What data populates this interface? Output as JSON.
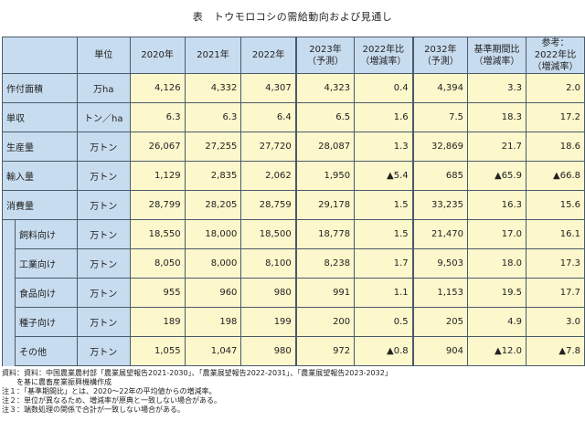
{
  "title": "表　トウモロコシの需給動向および見通し",
  "headers": {
    "unit": "単位",
    "y2020": "2020年",
    "y2021": "2021年",
    "y2022": "2022年",
    "y2023a": "2023年",
    "y2023b": "（予測）",
    "cmp2022a": "2022年比",
    "cmp2022b": "（増減率）",
    "y2032a": "2032年",
    "y2032b": "（予測）",
    "baseA": "基準期間比",
    "baseB": "（増減率）",
    "refA": "参考：",
    "refB": "2022年比",
    "refC": "（増減率）"
  },
  "rows": [
    {
      "label": "作付面積",
      "unit": "万ha",
      "v": [
        "4,126",
        "4,332",
        "4,307",
        "4,323",
        "0.4",
        "4,394",
        "3.3",
        "2.0"
      ]
    },
    {
      "label": "単収",
      "unit": "トン／ha",
      "v": [
        "6.3",
        "6.3",
        "6.4",
        "6.5",
        "1.6",
        "7.5",
        "18.3",
        "17.2"
      ]
    },
    {
      "label": "生産量",
      "unit": "万トン",
      "v": [
        "26,067",
        "27,255",
        "27,720",
        "28,087",
        "1.3",
        "32,869",
        "21.7",
        "18.6"
      ]
    },
    {
      "label": "輸入量",
      "unit": "万トン",
      "v": [
        "1,129",
        "2,835",
        "2,062",
        "1,950",
        "▲5.4",
        "685",
        "▲65.9",
        "▲66.8"
      ]
    },
    {
      "label": "消費量",
      "unit": "万トン",
      "v": [
        "28,799",
        "28,205",
        "28,759",
        "29,178",
        "1.5",
        "33,235",
        "16.3",
        "15.6"
      ]
    },
    {
      "label": "飼料向け",
      "unit": "万トン",
      "v": [
        "18,550",
        "18,000",
        "18,500",
        "18,778",
        "1.5",
        "21,470",
        "17.0",
        "16.1"
      ]
    },
    {
      "label": "工業向け",
      "unit": "万トン",
      "v": [
        "8,050",
        "8,000",
        "8,100",
        "8,238",
        "1.7",
        "9,503",
        "18.0",
        "17.3"
      ]
    },
    {
      "label": "食品向け",
      "unit": "万トン",
      "v": [
        "955",
        "960",
        "980",
        "991",
        "1.1",
        "1,153",
        "19.5",
        "17.7"
      ]
    },
    {
      "label": "種子向け",
      "unit": "万トン",
      "v": [
        "189",
        "198",
        "199",
        "200",
        "0.5",
        "205",
        "4.9",
        "3.0"
      ]
    },
    {
      "label": "その他",
      "unit": "万トン",
      "v": [
        "1,055",
        "1,047",
        "980",
        "972",
        "▲0.8",
        "904",
        "▲12.0",
        "▲7.8"
      ]
    }
  ],
  "notes": [
    "資料：資料：中国農業農村部「農業展望報告2021-2030」、「農業展望報告2022-2031」、「農業展望報告2023-2032」",
    "　　を基に農畜産業振興機構作成",
    "注１：「基準期間比」とは、2020～22年の平均値からの増減率。",
    "注２：単位が異なるため、増減率が原典と一致しない場合がある。",
    "注３：端数処理の関係で合計が一致しない場合がある。"
  ]
}
